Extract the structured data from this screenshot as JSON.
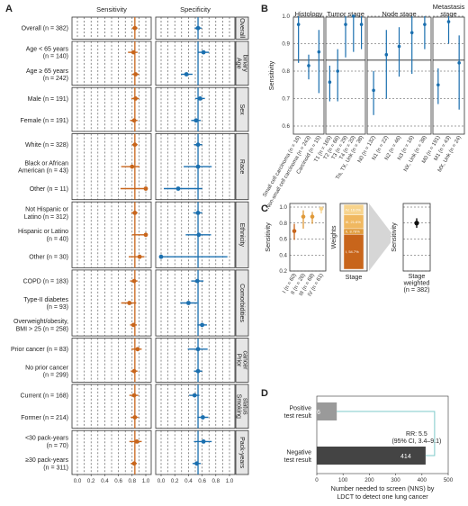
{
  "colors": {
    "sensitivity": "#c8651b",
    "specificity": "#1a6faf",
    "weight_dark": "#c8651b",
    "weight_mid": "#e09a3a",
    "weight_light": "#f0b860",
    "weight_pale": "#f7d38c",
    "nns_pos": "#9a9a9a",
    "nns_neg": "#444444",
    "connector": "#7ec9c9"
  },
  "panels": {
    "a": "A",
    "b": "B",
    "c": "C",
    "d": "D"
  },
  "panel_a": {
    "col_titles": [
      "Sensitivity",
      "Specificity"
    ],
    "ticks": [
      "0.0",
      "0.2",
      "0.4",
      "0.6",
      "0.8",
      "1.0"
    ],
    "sens_ref": 0.84,
    "spec_ref": 0.54,
    "groups": [
      {
        "name": "Overall",
        "rows": [
          {
            "lines": [
              "Overall (n = 382)"
            ],
            "sens": [
              0.84,
              0.8,
              0.88
            ],
            "spec": [
              0.54,
              0.49,
              0.59
            ]
          }
        ]
      },
      {
        "name": "Age binary",
        "rows": [
          {
            "lines": [
              "Age < 65 years",
              "(n = 140)"
            ],
            "sens": [
              0.82,
              0.74,
              0.88
            ],
            "spec": [
              0.62,
              0.54,
              0.7
            ]
          },
          {
            "lines": [
              "Age ≥ 65 years",
              "(n = 242)"
            ],
            "sens": [
              0.85,
              0.8,
              0.9
            ],
            "spec": [
              0.37,
              0.29,
              0.46
            ]
          }
        ]
      },
      {
        "name": "Sex",
        "rows": [
          {
            "lines": [
              "Male (n = 191)"
            ],
            "sens": [
              0.85,
              0.79,
              0.9
            ],
            "spec": [
              0.57,
              0.5,
              0.64
            ]
          },
          {
            "lines": [
              "Female (n = 191)"
            ],
            "sens": [
              0.83,
              0.77,
              0.88
            ],
            "spec": [
              0.51,
              0.44,
              0.58
            ]
          }
        ]
      },
      {
        "name": "Race",
        "rows": [
          {
            "lines": [
              "White (n = 328)"
            ],
            "sens": [
              0.84,
              0.8,
              0.88
            ],
            "spec": [
              0.54,
              0.48,
              0.6
            ]
          },
          {
            "lines": [
              "Black or African",
              "American (n = 43)"
            ],
            "sens": [
              0.8,
              0.64,
              0.91
            ],
            "spec": [
              0.54,
              0.33,
              0.74
            ]
          },
          {
            "lines": [
              "Other (n = 11)"
            ],
            "sens": [
              1.0,
              0.63,
              1.0
            ],
            "spec": [
              0.25,
              0.04,
              0.6
            ]
          }
        ]
      },
      {
        "name": "Ethnicity",
        "rows": [
          {
            "lines": [
              "Not Hispanic or",
              "Latino (n = 312)"
            ],
            "sens": [
              0.84,
              0.79,
              0.88
            ],
            "spec": [
              0.54,
              0.47,
              0.6
            ]
          },
          {
            "lines": [
              "Hispanic or Latino",
              "(n = 40)"
            ],
            "sens": [
              1.0,
              0.8,
              1.0
            ],
            "spec": [
              0.55,
              0.36,
              0.73
            ]
          },
          {
            "lines": [
              "Other (n = 30)"
            ],
            "sens": [
              0.91,
              0.75,
              0.98
            ],
            "spec": [
              0.0,
              0.0,
              0.97
            ]
          }
        ]
      },
      {
        "name": "Comorbidities",
        "rows": [
          {
            "lines": [
              "COPD (n = 183)"
            ],
            "sens": [
              0.83,
              0.77,
              0.88
            ],
            "spec": [
              0.53,
              0.44,
              0.62
            ]
          },
          {
            "lines": [
              "Type-II diabetes",
              "(n = 93)"
            ],
            "sens": [
              0.76,
              0.64,
              0.86
            ],
            "spec": [
              0.4,
              0.28,
              0.53
            ]
          },
          {
            "lines": [
              "Overweight/obesity,",
              "BMI > 25 (n = 258)"
            ],
            "sens": [
              0.82,
              0.77,
              0.87
            ],
            "spec": [
              0.6,
              0.53,
              0.67
            ]
          }
        ]
      },
      {
        "name": "Prior cancer",
        "rows": [
          {
            "lines": [
              "Prior cancer (n = 83)"
            ],
            "sens": [
              0.88,
              0.79,
              0.94
            ],
            "spec": [
              0.54,
              0.39,
              0.68
            ]
          },
          {
            "lines": [
              "No prior cancer",
              "(n = 299)"
            ],
            "sens": [
              0.83,
              0.78,
              0.88
            ],
            "spec": [
              0.54,
              0.48,
              0.6
            ]
          }
        ]
      },
      {
        "name": "Smoking status",
        "rows": [
          {
            "lines": [
              "Current (n = 168)"
            ],
            "sens": [
              0.83,
              0.76,
              0.89
            ],
            "spec": [
              0.49,
              0.41,
              0.56
            ]
          },
          {
            "lines": [
              "Former (n = 214)"
            ],
            "sens": [
              0.84,
              0.78,
              0.89
            ],
            "spec": [
              0.61,
              0.53,
              0.69
            ]
          }
        ]
      },
      {
        "name": "Pack-years",
        "rows": [
          {
            "lines": [
              "<30 pack-years",
              "(n = 70)"
            ],
            "sens": [
              0.87,
              0.76,
              0.94
            ],
            "spec": [
              0.62,
              0.48,
              0.74
            ]
          },
          {
            "lines": [
              "≥30 pack-years",
              "(n = 311)"
            ],
            "sens": [
              0.83,
              0.78,
              0.87
            ],
            "spec": [
              0.52,
              0.46,
              0.58
            ]
          }
        ]
      }
    ]
  },
  "panel_b": {
    "ylabel": "Sensitivity",
    "yticks": [
      "0.6",
      "0.7",
      "0.8",
      "0.9",
      "1.0"
    ],
    "ref": 0.84,
    "facets": [
      {
        "title": [
          "Histology"
        ],
        "points": [
          {
            "label": "Small cell carcinoma (n = 16)",
            "value": 0.97,
            "lo": 0.83,
            "hi": 1.0
          },
          {
            "label": "Non-small cell carcinoma (n = 243)",
            "value": 0.82,
            "lo": 0.77,
            "hi": 0.86
          },
          {
            "label": "Carcinoid (n = 15)",
            "value": 0.87,
            "lo": 0.72,
            "hi": 0.95
          }
        ]
      },
      {
        "title": [
          "Tumor stage"
        ],
        "points": [
          {
            "label": "T1 (n = 165)",
            "value": 0.76,
            "lo": 0.69,
            "hi": 0.82
          },
          {
            "label": "T2 (n = 66)",
            "value": 0.8,
            "lo": 0.69,
            "hi": 0.88
          },
          {
            "label": "T3 (n = 29)",
            "value": 0.97,
            "lo": 0.85,
            "hi": 1.0
          },
          {
            "label": "T4 (n = 20)",
            "value": 1.0,
            "lo": 0.87,
            "hi": 1.0
          },
          {
            "label": "Tis, TX, Unk (n = 38)",
            "value": 0.97,
            "lo": 0.88,
            "hi": 1.0
          }
        ]
      },
      {
        "title": [
          "Node stage"
        ],
        "points": [
          {
            "label": "N0 (n = 132)",
            "value": 0.73,
            "lo": 0.64,
            "hi": 0.8
          },
          {
            "label": "N1 (n = 22)",
            "value": 0.86,
            "lo": 0.7,
            "hi": 0.95
          },
          {
            "label": "N2 (n = 46)",
            "value": 0.89,
            "lo": 0.78,
            "hi": 0.96
          },
          {
            "label": "N3 (n = 16)",
            "value": 0.94,
            "lo": 0.79,
            "hi": 1.0
          },
          {
            "label": "NX, Unk (n = 38)",
            "value": 0.97,
            "lo": 0.88,
            "hi": 1.0
          }
        ]
      },
      {
        "title": [
          "Metastasis",
          "stage"
        ],
        "points": [
          {
            "label": "M0 (n = 191)",
            "value": 0.75,
            "lo": 0.68,
            "hi": 0.81
          },
          {
            "label": "M1 (n = 43)",
            "value": 0.98,
            "lo": 0.9,
            "hi": 1.0
          },
          {
            "label": "MX, Unk (n = 24)",
            "value": 0.83,
            "lo": 0.66,
            "hi": 0.93
          }
        ]
      }
    ]
  },
  "panel_c": {
    "ylabel_left": "Sensitivity",
    "ylabel_weights": "Weights",
    "ylabel_right": "Sensitivity",
    "yticks": [
      "0.2",
      "0.4",
      "0.6",
      "0.8",
      "1.0"
    ],
    "stages": [
      {
        "label": "I (n = 60)",
        "value": 0.7,
        "lo": 0.59,
        "hi": 0.79
      },
      {
        "label": "II (n = 26)",
        "value": 0.88,
        "lo": 0.73,
        "hi": 0.96
      },
      {
        "label": "III (n = 68)",
        "value": 0.88,
        "lo": 0.79,
        "hi": 0.94
      },
      {
        "label": "IV (n = 61)",
        "value": 0.98,
        "lo": 0.92,
        "hi": 1.0
      }
    ],
    "weights": [
      {
        "label": "I, 54.7%",
        "value": 0.547
      },
      {
        "label": "II, 8.78%",
        "value": 0.0878
      },
      {
        "label": "III, 21.6%",
        "value": 0.216
      },
      {
        "label": "IV, 16.0%",
        "value": 0.16
      }
    ],
    "weights_xlabel": "Stage",
    "weighted": {
      "label": [
        "Stage",
        "weighted",
        "(n = 382)"
      ],
      "value": 0.8,
      "lo": 0.74,
      "hi": 0.86
    }
  },
  "chart_data": {
    "type": "bar",
    "title": "",
    "categories": [
      "Positive test result",
      "Negative test result"
    ],
    "values": [
      76,
      414
    ],
    "xlabel": "Number needed to screen (NNS) by LDCT to detect one lung cancer",
    "xticks": [
      "0",
      "100",
      "200",
      "300",
      "400",
      "500"
    ],
    "xlim": [
      0,
      500
    ],
    "annotation": [
      "RR: 5.5",
      "(95% CI, 3.4–9.1)"
    ]
  }
}
